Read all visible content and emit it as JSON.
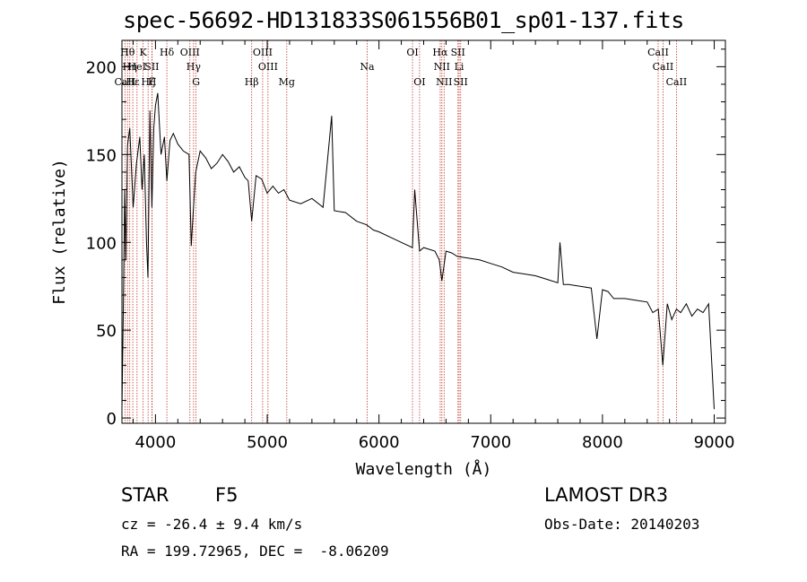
{
  "title": "spec-56692-HD131833S061556B01_sp01-137.fits",
  "chart_data": {
    "type": "line",
    "title": "spec-56692-HD131833S061556B01_sp01-137.fits",
    "xlabel": "Wavelength (Å)",
    "ylabel": "Flux (relative)",
    "xlim": [
      3700,
      9100
    ],
    "ylim": [
      -3,
      215
    ],
    "x_ticks": [
      4000,
      5000,
      6000,
      7000,
      8000,
      9000
    ],
    "y_ticks": [
      0,
      50,
      100,
      150,
      200
    ],
    "series": [
      {
        "name": "spectrum",
        "x": [
          3700,
          3712,
          3725,
          3735,
          3750,
          3770,
          3800,
          3830,
          3860,
          3880,
          3900,
          3920,
          3933,
          3950,
          3968,
          3985,
          4000,
          4020,
          4050,
          4080,
          4102,
          4130,
          4160,
          4200,
          4250,
          4300,
          4320,
          4340,
          4360,
          4400,
          4450,
          4500,
          4550,
          4600,
          4650,
          4700,
          4750,
          4800,
          4830,
          4861,
          4900,
          4950,
          5000,
          5050,
          5100,
          5150,
          5200,
          5300,
          5400,
          5500,
          5577,
          5600,
          5700,
          5800,
          5890,
          5950,
          6000,
          6100,
          6200,
          6300,
          6320,
          6363,
          6400,
          6500,
          6540,
          6563,
          6600,
          6650,
          6700,
          6800,
          6900,
          7000,
          7100,
          7200,
          7300,
          7400,
          7500,
          7600,
          7620,
          7650,
          7700,
          7800,
          7900,
          7950,
          8000,
          8050,
          8100,
          8200,
          8300,
          8400,
          8450,
          8500,
          8540,
          8580,
          8620,
          8662,
          8700,
          8750,
          8800,
          8850,
          8900,
          8950,
          9000
        ],
        "y": [
          5,
          60,
          130,
          90,
          155,
          165,
          120,
          145,
          160,
          130,
          150,
          100,
          80,
          175,
          120,
          165,
          178,
          185,
          150,
          160,
          135,
          158,
          162,
          156,
          152,
          150,
          98,
          120,
          140,
          152,
          148,
          142,
          145,
          150,
          146,
          140,
          143,
          137,
          135,
          112,
          138,
          136,
          128,
          132,
          128,
          130,
          124,
          122,
          125,
          120,
          172,
          118,
          117,
          112,
          110,
          107,
          106,
          103,
          100,
          97,
          130,
          95,
          97,
          95,
          90,
          78,
          95,
          94,
          92,
          91,
          90,
          88,
          86,
          83,
          82,
          81,
          79,
          77,
          100,
          76,
          76,
          75,
          74,
          45,
          73,
          72,
          68,
          68,
          67,
          66,
          60,
          62,
          30,
          65,
          56,
          62,
          60,
          65,
          58,
          62,
          60,
          65,
          5
        ]
      }
    ],
    "lines": [
      {
        "name": "CaII",
        "x": 3727,
        "row": 3
      },
      {
        "name": "Hθ",
        "x": 3750,
        "row": 1
      },
      {
        "name": "Hη",
        "x": 3770,
        "row": 2
      },
      {
        "name": "Hε",
        "x": 3797,
        "row": 3
      },
      {
        "name": "HeI",
        "x": 3835,
        "row": 2
      },
      {
        "name": "K",
        "x": 3889,
        "row": 1
      },
      {
        "name": "Hζ",
        "x": 3934,
        "row": 3
      },
      {
        "name": "SII",
        "x": 3968,
        "row": 2
      },
      {
        "name": "H",
        "x": 3970,
        "row": 3
      },
      {
        "name": "Hδ",
        "x": 4102,
        "row": 1
      },
      {
        "name": "OIII",
        "x": 4308,
        "row": 1
      },
      {
        "name": "Hγ",
        "x": 4341,
        "row": 2
      },
      {
        "name": "G",
        "x": 4363,
        "row": 3
      },
      {
        "name": "Hβ",
        "x": 4861,
        "row": 3
      },
      {
        "name": "OIII",
        "x": 4959,
        "row": 1
      },
      {
        "name": "OIII",
        "x": 5007,
        "row": 2
      },
      {
        "name": "Mg",
        "x": 5175,
        "row": 3
      },
      {
        "name": "Na",
        "x": 5894,
        "row": 2
      },
      {
        "name": "OI",
        "x": 6300,
        "row": 1
      },
      {
        "name": "OI",
        "x": 6363,
        "row": 3
      },
      {
        "name": "Hα",
        "x": 6548,
        "row": 1
      },
      {
        "name": "NII",
        "x": 6563,
        "row": 2
      },
      {
        "name": "NII",
        "x": 6583,
        "row": 3
      },
      {
        "name": "SII",
        "x": 6707,
        "row": 1
      },
      {
        "name": "Li",
        "x": 6717,
        "row": 2
      },
      {
        "name": "SII",
        "x": 6731,
        "row": 3
      },
      {
        "name": "CaII",
        "x": 8498,
        "row": 1
      },
      {
        "name": "CaII",
        "x": 8542,
        "row": 2
      },
      {
        "name": "CaII",
        "x": 8662,
        "row": 3
      }
    ]
  },
  "info": {
    "object_class": "STAR",
    "subclass": "F5",
    "survey": "LAMOST DR3",
    "cz": "cz = -26.4 ± 9.4 km/s",
    "obs_date": "Obs-Date: 20140203",
    "coords": "RA = 199.72965, DEC =  -8.06209"
  }
}
